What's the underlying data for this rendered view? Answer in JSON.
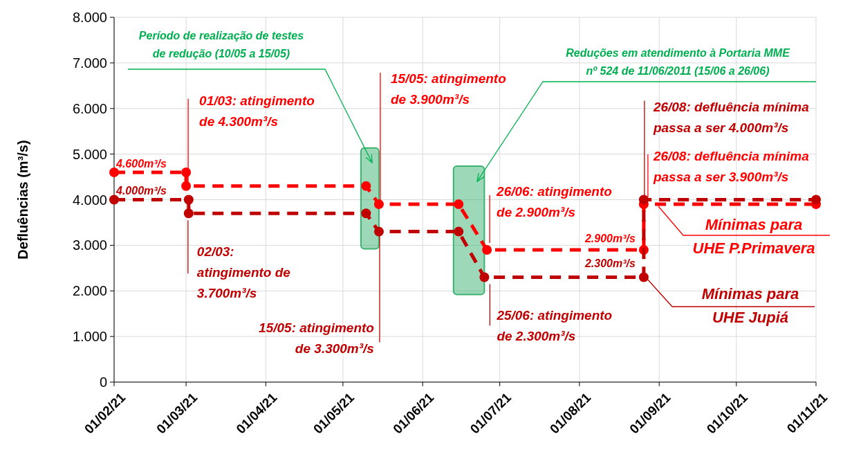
{
  "chart_data": {
    "type": "line",
    "ylabel": "Defluências (m³/s)",
    "xlim": [
      "2021-02-01",
      "2021-11-01"
    ],
    "xticks": [
      {
        "value": "2021-02-01",
        "label": "01/02/21"
      },
      {
        "value": "2021-03-01",
        "label": "01/03/21"
      },
      {
        "value": "2021-04-01",
        "label": "01/04/21"
      },
      {
        "value": "2021-05-01",
        "label": "01/05/21"
      },
      {
        "value": "2021-06-01",
        "label": "01/06/21"
      },
      {
        "value": "2021-07-01",
        "label": "01/07/21"
      },
      {
        "value": "2021-08-01",
        "label": "01/08/21"
      },
      {
        "value": "2021-09-01",
        "label": "01/09/21"
      },
      {
        "value": "2021-10-01",
        "label": "01/10/21"
      },
      {
        "value": "2021-11-01",
        "label": "01/11/21"
      }
    ],
    "ylim": [
      0,
      8000
    ],
    "yticks": [
      {
        "value": 0,
        "label": "0"
      },
      {
        "value": 1000,
        "label": "1.000"
      },
      {
        "value": 2000,
        "label": "2.000"
      },
      {
        "value": 3000,
        "label": "3.000"
      },
      {
        "value": 4000,
        "label": "4.000"
      },
      {
        "value": 5000,
        "label": "5.000"
      },
      {
        "value": 6000,
        "label": "6.000"
      },
      {
        "value": 7000,
        "label": "7.000"
      },
      {
        "value": 8000,
        "label": "8.000"
      }
    ],
    "grid": true,
    "legend": false,
    "marker": "circle",
    "line_style": "dashed",
    "series": [
      {
        "name": "Mínimas para\nUHE P.Primavera",
        "color": "#ff0000",
        "x": [
          "2021-02-01",
          "2021-03-01",
          "2021-03-01",
          "2021-05-10",
          "2021-05-15",
          "2021-06-15",
          "2021-06-26",
          "2021-08-26",
          "2021-08-26",
          "2021-11-01"
        ],
        "values": [
          4600,
          4600,
          4300,
          4300,
          3900,
          3900,
          2900,
          2900,
          3900,
          3900
        ]
      },
      {
        "name": "Mínimas para\nUHE Jupiá",
        "color": "#c00000",
        "x": [
          "2021-02-01",
          "2021-03-02",
          "2021-03-02",
          "2021-05-10",
          "2021-05-15",
          "2021-06-15",
          "2021-06-25",
          "2021-08-26",
          "2021-08-26",
          "2021-11-01"
        ],
        "values": [
          4000,
          4000,
          3700,
          3700,
          3300,
          3300,
          2300,
          2300,
          4000,
          4000
        ]
      }
    ],
    "bands": [
      {
        "axis": "x",
        "from": "2021-05-08",
        "to": "2021-05-15",
        "label": "Período de realização de testes\nde redução (10/05 a 15/05)",
        "color": "#3cb371"
      },
      {
        "axis": "x",
        "from": "2021-06-13",
        "to": "2021-06-25",
        "label": "Reduções em atendimento à Portaria MME\nnº 524 de 11/06/2011 (15/06 a 26/06)",
        "color": "#3cb371"
      }
    ],
    "annotations": [
      {
        "text": "4.600m³/s",
        "x": "2021-02-01",
        "y": 4600
      },
      {
        "text": "4.000m³/s",
        "x": "2021-02-01",
        "y": 4000
      },
      {
        "text": "01/03: atingimento\nde  4.300m³/s",
        "x": "2021-03-01",
        "y": 4300
      },
      {
        "text": "02/03:\natingimento de\n3.700m³/s",
        "x": "2021-03-02",
        "y": 3700
      },
      {
        "text": "15/05: atingimento\nde 3.900m³/s",
        "x": "2021-05-15",
        "y": 3900
      },
      {
        "text": "15/05: atingimento\nde 3.300m³/s",
        "x": "2021-05-15",
        "y": 3300
      },
      {
        "text": "26/06: atingimento\nde 2.900m³/s",
        "x": "2021-06-26",
        "y": 2900
      },
      {
        "text": "25/06: atingimento\nde 2.300m³/s",
        "x": "2021-06-25",
        "y": 2300
      },
      {
        "text": "2.900m³/s",
        "x": "2021-08-26",
        "y": 2900
      },
      {
        "text": "2.300m³/s",
        "x": "2021-08-26",
        "y": 2300
      },
      {
        "text": "26/08: defluência mínima\npassa a ser 4.000m³/s",
        "x": "2021-08-26",
        "y": 4000
      },
      {
        "text": "26/08: defluência mínima\npassa a ser 3.900m³/s",
        "x": "2021-08-26",
        "y": 3900
      }
    ]
  }
}
